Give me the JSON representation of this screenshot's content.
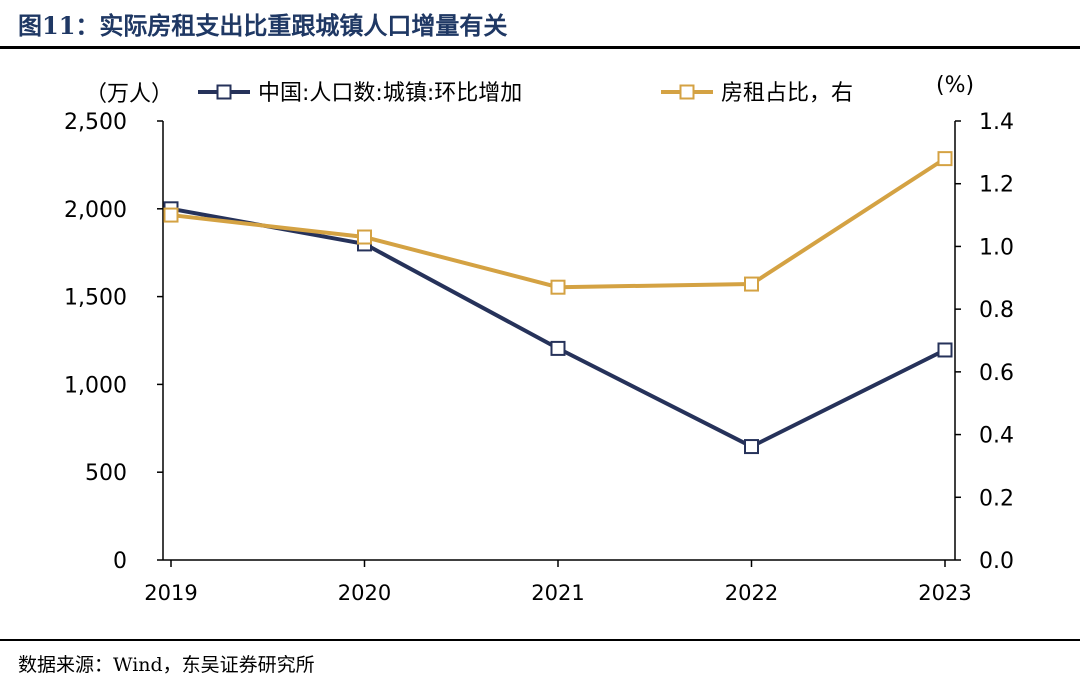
{
  "header": {
    "title": "图11：实际房租支出比重跟城镇人口增量有关"
  },
  "footer": {
    "source": "数据来源：Wind，东吴证券研究所"
  },
  "chart_data": {
    "type": "line",
    "categories": [
      "2019",
      "2020",
      "2021",
      "2022",
      "2023"
    ],
    "left_axis": {
      "unit_label": "（万人）",
      "ylim": [
        0,
        2500
      ],
      "ticks": [
        "0",
        "500",
        "1,000",
        "1,500",
        "2,000",
        "2,500"
      ]
    },
    "right_axis": {
      "unit_label": "(%)",
      "ylim": [
        0,
        1.4
      ],
      "ticks": [
        "0.0",
        "0.2",
        "0.4",
        "0.6",
        "0.8",
        "1.0",
        "1.2",
        "1.4"
      ]
    },
    "series": [
      {
        "name": "中国:人口数:城镇:环比增加",
        "axis": "left",
        "color": "#26325a",
        "values": [
          2000,
          1800,
          1205,
          646,
          1196
        ]
      },
      {
        "name": "房租占比，右",
        "axis": "right",
        "color": "#d4a243",
        "values": [
          1.1,
          1.03,
          0.87,
          0.88,
          1.28
        ]
      }
    ],
    "grid": false,
    "legend": "top"
  }
}
